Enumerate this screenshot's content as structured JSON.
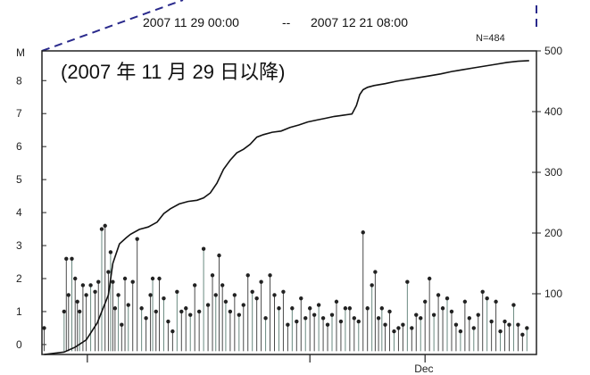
{
  "header": {
    "period_start": "2007  11  29  00:00",
    "period_sep": "--",
    "period_end": "2007  12  21  08:00"
  },
  "chart_data": {
    "type": "scatter",
    "title": "",
    "annotation": "(2007 年 11 月 29 日以降)",
    "count_label": "N=484",
    "left_axis": {
      "label": "M",
      "range": [
        -0.3,
        8.9
      ],
      "ticks": [
        0,
        1,
        2,
        3,
        4,
        5,
        6,
        7,
        8
      ]
    },
    "right_axis": {
      "label": "",
      "range": [
        0,
        500
      ],
      "ticks": [
        100,
        200,
        300,
        400,
        500
      ]
    },
    "x_axis": {
      "range": [
        0,
        22.33
      ],
      "tick_labels": [
        {
          "x": 2.05,
          "label": ""
        },
        {
          "x": 12.1,
          "label": ""
        },
        {
          "x": 17.3,
          "label": "Dec"
        }
      ]
    },
    "colors": {
      "stems": "#4a4a4a",
      "stems_alt": "#6a8a80",
      "cumulative": "#111111",
      "dashed_zoom": "#2a2a8c"
    },
    "series": [
      {
        "kind": "magnitude_stems",
        "x": [
          0.1,
          1.0,
          1.1,
          1.2,
          1.35,
          1.5,
          1.6,
          1.7,
          1.85,
          2.0,
          2.2,
          2.4,
          2.55,
          2.7,
          2.85,
          3.0,
          3.1,
          3.2,
          3.3,
          3.45,
          3.6,
          3.75,
          3.9,
          4.1,
          4.3,
          4.5,
          4.7,
          4.9,
          5.0,
          5.15,
          5.3,
          5.5,
          5.7,
          5.9,
          6.1,
          6.3,
          6.5,
          6.7,
          6.9,
          7.1,
          7.3,
          7.5,
          7.7,
          7.85,
          8.0,
          8.15,
          8.3,
          8.5,
          8.7,
          8.9,
          9.1,
          9.3,
          9.5,
          9.7,
          9.9,
          10.1,
          10.3,
          10.5,
          10.7,
          10.9,
          11.1,
          11.3,
          11.5,
          11.7,
          11.9,
          12.1,
          12.3,
          12.5,
          12.7,
          12.9,
          13.1,
          13.3,
          13.5,
          13.7,
          13.9,
          14.1,
          14.3,
          14.5,
          14.7,
          14.9,
          15.05,
          15.2,
          15.35,
          15.5,
          15.7,
          15.9,
          16.1,
          16.3,
          16.5,
          16.7,
          16.9,
          17.1,
          17.3,
          17.5,
          17.7,
          17.9,
          18.1,
          18.3,
          18.5,
          18.7,
          18.9,
          19.1,
          19.3,
          19.5,
          19.7,
          19.9,
          20.1,
          20.3,
          20.5,
          20.7,
          20.9,
          21.1,
          21.3,
          21.5,
          21.7,
          21.9
        ],
        "values": [
          0.5,
          1.0,
          2.6,
          1.5,
          2.6,
          2.0,
          1.3,
          1.0,
          1.8,
          1.5,
          1.8,
          1.6,
          1.9,
          3.5,
          3.6,
          2.2,
          2.8,
          1.9,
          1.1,
          1.5,
          0.6,
          2.0,
          1.2,
          1.9,
          3.2,
          1.1,
          0.8,
          1.5,
          2.0,
          1.0,
          2.0,
          1.4,
          0.7,
          0.4,
          1.6,
          1.0,
          1.1,
          0.9,
          1.8,
          1.0,
          2.9,
          1.2,
          2.1,
          1.5,
          2.7,
          1.8,
          1.3,
          1.0,
          1.5,
          0.9,
          1.2,
          2.1,
          1.6,
          1.4,
          1.9,
          0.8,
          2.1,
          1.5,
          1.1,
          1.6,
          0.6,
          1.1,
          0.7,
          1.4,
          0.8,
          1.1,
          0.9,
          1.2,
          0.8,
          0.6,
          0.9,
          1.3,
          0.7,
          1.1,
          1.1,
          0.8,
          0.7,
          3.4,
          1.1,
          1.8,
          2.2,
          0.8,
          1.1,
          0.6,
          1.0,
          0.4,
          0.5,
          0.6,
          1.9,
          0.5,
          0.9,
          0.8,
          1.3,
          2.0,
          0.9,
          1.5,
          1.1,
          1.4,
          1.0,
          0.6,
          0.4,
          1.3,
          0.8,
          0.5,
          0.9,
          1.6,
          1.4,
          0.7,
          1.3,
          0.4,
          0.7,
          0.6,
          1.2,
          0.6,
          0.3,
          0.5
        ]
      },
      {
        "kind": "cumulative_count",
        "x": [
          0.1,
          1.0,
          1.5,
          2.0,
          2.5,
          3.0,
          3.2,
          3.5,
          3.8,
          4.0,
          4.4,
          4.8,
          5.2,
          5.5,
          5.8,
          6.2,
          6.6,
          7.0,
          7.3,
          7.6,
          7.9,
          8.2,
          8.5,
          8.8,
          9.1,
          9.4,
          9.7,
          10.0,
          10.4,
          10.8,
          11.2,
          11.6,
          12.0,
          12.4,
          12.8,
          13.2,
          13.6,
          14.0,
          14.2,
          14.35,
          14.5,
          14.7,
          15.0,
          15.5,
          16.0,
          16.5,
          17.0,
          17.5,
          18.0,
          18.5,
          19.0,
          19.5,
          20.0,
          20.5,
          21.0,
          21.5,
          22.0
        ],
        "values": [
          0,
          4,
          12,
          24,
          52,
          98,
          150,
          182,
          192,
          198,
          206,
          210,
          218,
          232,
          240,
          248,
          252,
          254,
          258,
          266,
          282,
          305,
          320,
          332,
          338,
          346,
          358,
          362,
          366,
          368,
          374,
          378,
          383,
          386,
          389,
          392,
          394,
          396,
          410,
          428,
          436,
          440,
          443,
          446,
          450,
          453,
          456,
          459,
          462,
          466,
          469,
          472,
          475,
          478,
          481,
          483,
          484
        ]
      }
    ]
  }
}
